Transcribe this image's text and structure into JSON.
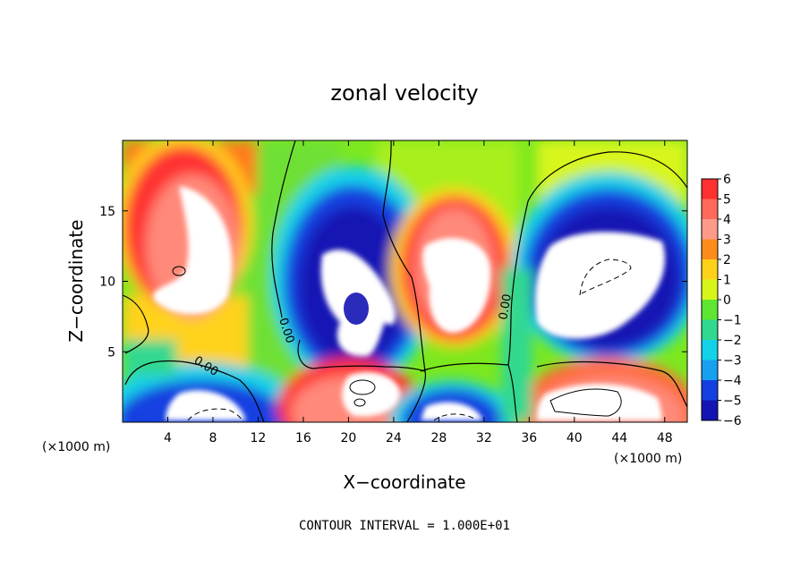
{
  "chart_data": {
    "type": "heatmap",
    "title": "zonal velocity",
    "xlabel": "X−coordinate",
    "ylabel": "Z−coordinate",
    "x_unit_left": "(×1000 m)",
    "x_unit_right": "(×1000 m)",
    "xlim": [
      0,
      50
    ],
    "ylim": [
      0,
      20
    ],
    "x_ticks": [
      4,
      8,
      12,
      16,
      20,
      24,
      28,
      32,
      36,
      40,
      44,
      48
    ],
    "x_tick_labels": [
      "4",
      "8",
      "12",
      "16",
      "20",
      "24",
      "28",
      "32",
      "36",
      "40",
      "44",
      "48"
    ],
    "y_ticks": [
      5,
      10,
      15
    ],
    "y_tick_labels": [
      "5",
      "10",
      "15"
    ],
    "footnote": "CONTOUR INTERVAL = 1.000E+01",
    "contour_labels": [
      "0.00",
      "0.00",
      "0.00"
    ],
    "colorbar": {
      "levels": [
        6,
        5,
        4,
        3,
        2,
        1,
        0,
        -1,
        -2,
        -3,
        -4,
        -5,
        -6
      ],
      "labels": [
        "6",
        "5",
        "4",
        "3",
        "2",
        "1",
        "0",
        "−1",
        "−2",
        "−3",
        "−4",
        "−5",
        "−6"
      ],
      "colors": [
        "#ff3030",
        "#ff6a5a",
        "#ff9a8a",
        "#ff8c1a",
        "#ffd21a",
        "#d8f51a",
        "#5ee632",
        "#30d890",
        "#12d2e8",
        "#18a0f0",
        "#1440e0",
        "#1414b4",
        "#7a12b8"
      ]
    },
    "features": [
      {
        "name": "positive-cell",
        "x": 6,
        "z": 12,
        "sign": "positive",
        "saturated": true
      },
      {
        "name": "negative-cell",
        "x": 20,
        "z": 9,
        "sign": "negative",
        "saturated": true
      },
      {
        "name": "positive-cell",
        "x": 29,
        "z": 11,
        "sign": "positive",
        "saturated": true
      },
      {
        "name": "negative-cell",
        "x": 41,
        "z": 10.5,
        "sign": "negative",
        "saturated": true
      },
      {
        "name": "negative-cell",
        "x": 7,
        "z": 1.5,
        "sign": "negative",
        "saturated": true
      },
      {
        "name": "positive-cell",
        "x": 20,
        "z": 2,
        "sign": "positive",
        "saturated": true
      },
      {
        "name": "negative-cell",
        "x": 29,
        "z": 1.5,
        "sign": "negative",
        "saturated": true
      },
      {
        "name": "positive-cell",
        "x": 42,
        "z": 2,
        "sign": "positive",
        "saturated": true
      }
    ]
  }
}
